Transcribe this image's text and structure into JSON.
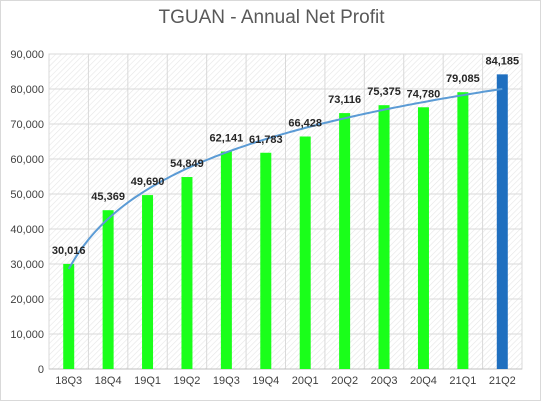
{
  "chart_data": {
    "type": "bar",
    "title": "TGUAN - Annual Net Profit",
    "xlabel": "",
    "ylabel": "",
    "categories": [
      "18Q3",
      "18Q4",
      "19Q1",
      "19Q2",
      "19Q3",
      "19Q4",
      "20Q1",
      "20Q2",
      "20Q3",
      "20Q4",
      "21Q1",
      "21Q2"
    ],
    "values": [
      30016,
      45369,
      49690,
      54849,
      62141,
      61783,
      66428,
      73116,
      75375,
      74780,
      79085,
      84185
    ],
    "data_labels": [
      "30,016",
      "45,369",
      "49,690",
      "54,849",
      "62,141",
      "61,783",
      "66,428",
      "73,116",
      "75,375",
      "74,780",
      "79,085",
      "84,185"
    ],
    "ylim": [
      0,
      90000
    ],
    "yticks": [
      0,
      10000,
      20000,
      30000,
      40000,
      50000,
      60000,
      70000,
      80000,
      90000
    ],
    "ytick_labels": [
      "0",
      "10,000",
      "20,000",
      "30,000",
      "40,000",
      "50,000",
      "60,000",
      "70,000",
      "80,000",
      "90,000"
    ],
    "grid": true,
    "trendline": "logarithmic",
    "colors": {
      "bar": "#1aff1a",
      "highlight_bar": "#1f6fbf",
      "trendline": "#5b9bd5",
      "gridline": "#d9d9d9"
    },
    "highlight_category": "21Q2"
  }
}
